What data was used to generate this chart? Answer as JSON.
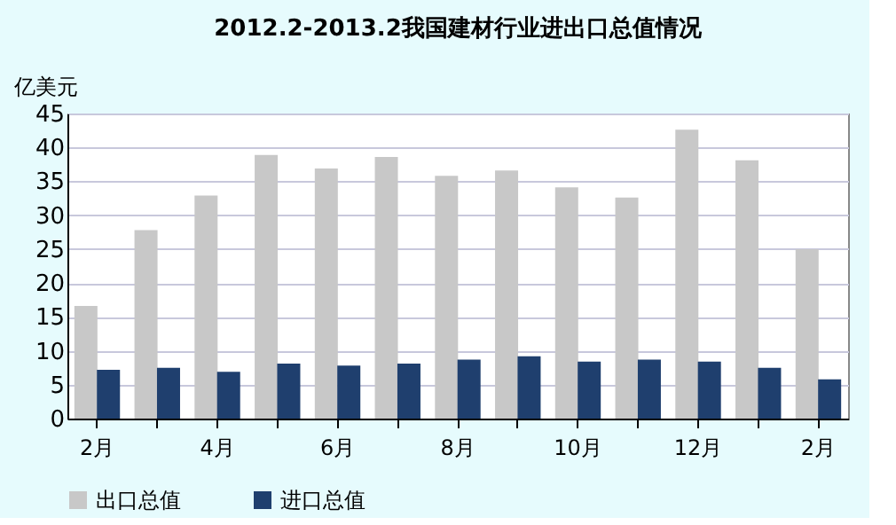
{
  "chart_data": {
    "type": "bar",
    "title": "2012.2-2013.2我国建材行业进出口总值情况",
    "ylabel": "亿美元",
    "categories": [
      "2月",
      null,
      "4月",
      null,
      "6月",
      null,
      "8月",
      null,
      "10月",
      null,
      "12月",
      null,
      "2月"
    ],
    "series": [
      {
        "name": "出口总值",
        "color": "#c8c8c8",
        "values": [
          16.6,
          27.8,
          32.9,
          38.9,
          36.9,
          38.6,
          35.8,
          36.6,
          34.1,
          32.6,
          42.6,
          38.1,
          25.0
        ]
      },
      {
        "name": "进口总值",
        "color": "#1f3f6e",
        "values": [
          7.2,
          7.5,
          6.9,
          8.1,
          7.8,
          8.1,
          8.7,
          9.2,
          8.4,
          8.7,
          8.4,
          7.5,
          5.8
        ]
      }
    ],
    "ylim": [
      0,
      45
    ],
    "yticks": [
      0,
      5,
      10,
      15,
      20,
      25,
      30,
      35,
      40,
      45
    ],
    "grid": "y",
    "legend": "bottom"
  }
}
